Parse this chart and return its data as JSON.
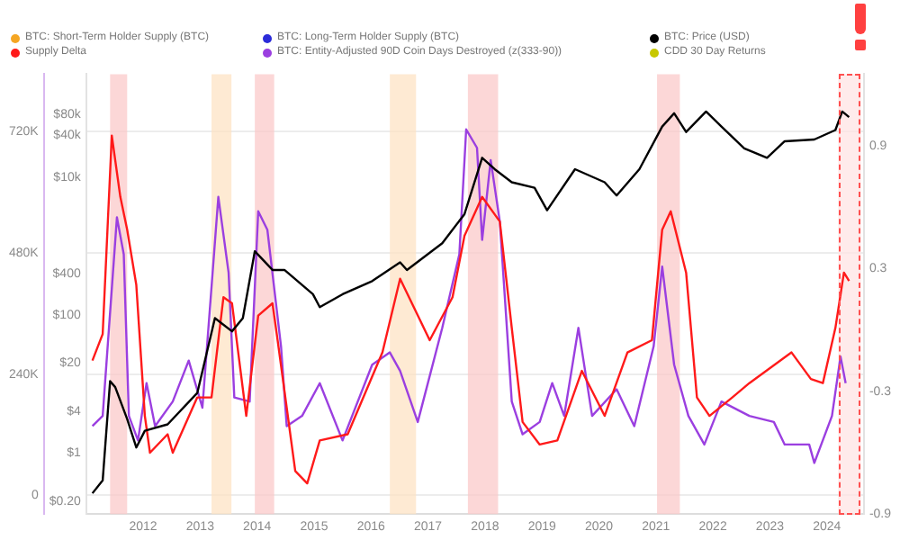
{
  "chart_data": {
    "type": "line",
    "legend": "top",
    "grid": "y",
    "log": "y3",
    "marker": "none",
    "xlim": [
      2011,
      2024.65
    ],
    "xticks": [
      2012,
      2013,
      2014,
      2015,
      2016,
      2017,
      2018,
      2019,
      2020,
      2021,
      2022,
      2023,
      2024
    ],
    "ylim": [
      -37000,
      834000
    ],
    "yticks": [
      0,
      {
        "value": 240000,
        "label": "240K"
      },
      {
        "value": 480000,
        "label": "480K"
      },
      {
        "value": 720000,
        "label": "720K"
      }
    ],
    "y3lim": [
      0.13,
      310000
    ],
    "y3ticks": [
      {
        "value": 0.2,
        "label": "$0.20"
      },
      {
        "value": 1,
        "label": "$1"
      },
      {
        "value": 4,
        "label": "$4"
      },
      {
        "value": 20,
        "label": "$20"
      },
      {
        "value": 100,
        "label": "$100"
      },
      {
        "value": 400,
        "label": "$400"
      },
      {
        "value": 10000,
        "label": "$10k"
      },
      {
        "value": 40000,
        "label": "$40k"
      },
      {
        "value": 80000,
        "label": "$80k"
      }
    ],
    "y2lim": [
      -0.9,
      1.25
    ],
    "y2ticks": [
      -0.9,
      -0.3,
      0.3,
      0.9
    ],
    "bands": [
      {
        "axis": "x",
        "from": 2011.42,
        "to": 2011.72,
        "color": "#fbc9c9"
      },
      {
        "axis": "x",
        "from": 2013.2,
        "to": 2013.55,
        "color": "#fde3c4"
      },
      {
        "axis": "x",
        "from": 2013.96,
        "to": 2014.3,
        "color": "#fbc9c9"
      },
      {
        "axis": "x",
        "from": 2016.33,
        "to": 2016.79,
        "color": "#fde3c4"
      },
      {
        "axis": "x",
        "from": 2017.7,
        "to": 2018.23,
        "color": "#fbc9c9"
      },
      {
        "axis": "x",
        "from": 2021.02,
        "to": 2021.42,
        "color": "#fbc9c9"
      },
      {
        "axis": "x",
        "from": 2024.2,
        "to": 2024.6,
        "color": "#ffe4e4"
      }
    ],
    "series": [
      {
        "name": "BTC: Short-Term Holder Supply (BTC)",
        "color": "#f5a623",
        "axis": "y"
      },
      {
        "name": "BTC: Long-Term Holder Supply (BTC)",
        "color": "#2b2bd9",
        "axis": "y"
      },
      {
        "name": "BTC: Price (USD)",
        "color": "#000000",
        "axis": "y3",
        "x": [
          2011.11,
          2011.29,
          2011.42,
          2011.51,
          2011.72,
          2011.88,
          2012.03,
          2012.43,
          2012.95,
          2013.26,
          2013.56,
          2013.75,
          2013.96,
          2014.27,
          2014.48,
          2014.98,
          2015.1,
          2015.5,
          2016.02,
          2016.51,
          2016.63,
          2017.25,
          2017.64,
          2017.95,
          2018.17,
          2018.47,
          2018.87,
          2019.09,
          2019.58,
          2020.1,
          2020.31,
          2020.71,
          2021.11,
          2021.32,
          2021.53,
          2021.88,
          2022.15,
          2022.55,
          2022.95,
          2023.26,
          2023.78,
          2024.15,
          2024.27,
          2024.39
        ],
        "values": [
          0.26,
          0.4,
          11,
          9,
          3.1,
          1.2,
          2.1,
          2.6,
          7.4,
          90,
          58,
          90,
          840,
          450,
          450,
          200,
          130,
          200,
          310,
          580,
          450,
          1100,
          2900,
          19000,
          13000,
          8400,
          7000,
          3300,
          13000,
          8400,
          5400,
          13000,
          54000,
          84000,
          45000,
          89000,
          54000,
          26000,
          19000,
          33000,
          35000,
          48000,
          89000,
          74000
        ]
      },
      {
        "name": "Supply Delta",
        "color": "#ff1a1a",
        "axis": "y2",
        "x": [
          2011.11,
          2011.29,
          2011.45,
          2011.6,
          2011.72,
          2011.88,
          2012.03,
          2012.12,
          2012.43,
          2012.52,
          2012.95,
          2013.2,
          2013.41,
          2013.56,
          2013.81,
          2014.02,
          2014.27,
          2014.36,
          2014.67,
          2014.88,
          2015.1,
          2015.59,
          2016.2,
          2016.51,
          2017.03,
          2017.43,
          2017.64,
          2017.95,
          2018.26,
          2018.47,
          2018.66,
          2018.96,
          2019.27,
          2019.7,
          2020.1,
          2020.5,
          2020.93,
          2021.11,
          2021.26,
          2021.53,
          2021.72,
          2021.94,
          2022.34,
          2022.64,
          2023.38,
          2023.72,
          2023.93,
          2024.15,
          2024.3,
          2024.39
        ],
        "values": [
          -0.15,
          -0.02,
          0.95,
          0.65,
          0.49,
          0.22,
          -0.42,
          -0.6,
          -0.51,
          -0.6,
          -0.33,
          -0.33,
          0.16,
          0.13,
          -0.42,
          0.07,
          0.13,
          -0.05,
          -0.69,
          -0.75,
          -0.54,
          -0.51,
          -0.11,
          0.25,
          -0.05,
          0.16,
          0.46,
          0.65,
          0.53,
          0.01,
          -0.45,
          -0.56,
          -0.54,
          -0.2,
          -0.42,
          -0.11,
          -0.05,
          0.49,
          0.58,
          0.28,
          -0.33,
          -0.42,
          -0.33,
          -0.26,
          -0.11,
          -0.24,
          -0.26,
          0.01,
          0.28,
          0.24
        ]
      },
      {
        "name": "BTC: Entity-Adjusted 90D Coin Days Destroyed (z(333-90))",
        "color": "#9b3fe0",
        "axis": "y2",
        "x": [
          2011.11,
          2011.29,
          2011.54,
          2011.66,
          2011.75,
          2011.91,
          2012.06,
          2012.21,
          2012.52,
          2012.8,
          2013.04,
          2013.32,
          2013.5,
          2013.6,
          2013.87,
          2014.02,
          2014.18,
          2014.42,
          2014.52,
          2014.79,
          2015.1,
          2015.5,
          2016.02,
          2016.33,
          2016.51,
          2016.82,
          2017.25,
          2017.55,
          2017.67,
          2017.86,
          2017.95,
          2018.1,
          2018.26,
          2018.47,
          2018.66,
          2018.96,
          2019.18,
          2019.39,
          2019.64,
          2019.88,
          2020.31,
          2020.62,
          2020.96,
          2021.11,
          2021.32,
          2021.57,
          2021.85,
          2022.15,
          2022.64,
          2023.07,
          2023.26,
          2023.69,
          2023.78,
          2024.09,
          2024.24,
          2024.33
        ],
        "values": [
          -0.47,
          -0.42,
          0.55,
          0.37,
          -0.42,
          -0.54,
          -0.26,
          -0.47,
          -0.35,
          -0.15,
          -0.38,
          0.65,
          0.28,
          -0.33,
          -0.35,
          0.58,
          0.49,
          -0.08,
          -0.47,
          -0.42,
          -0.26,
          -0.54,
          -0.17,
          -0.11,
          -0.2,
          -0.45,
          0.01,
          0.37,
          0.98,
          0.89,
          0.44,
          0.83,
          0.53,
          -0.35,
          -0.51,
          -0.45,
          -0.26,
          -0.42,
          0.01,
          -0.42,
          -0.29,
          -0.47,
          -0.08,
          0.31,
          -0.17,
          -0.42,
          -0.56,
          -0.35,
          -0.42,
          -0.45,
          -0.56,
          -0.56,
          -0.65,
          -0.42,
          -0.13,
          -0.26
        ]
      },
      {
        "name": "CDD 30 Day Returns",
        "color": "#c8c800",
        "axis": "y2"
      }
    ]
  }
}
